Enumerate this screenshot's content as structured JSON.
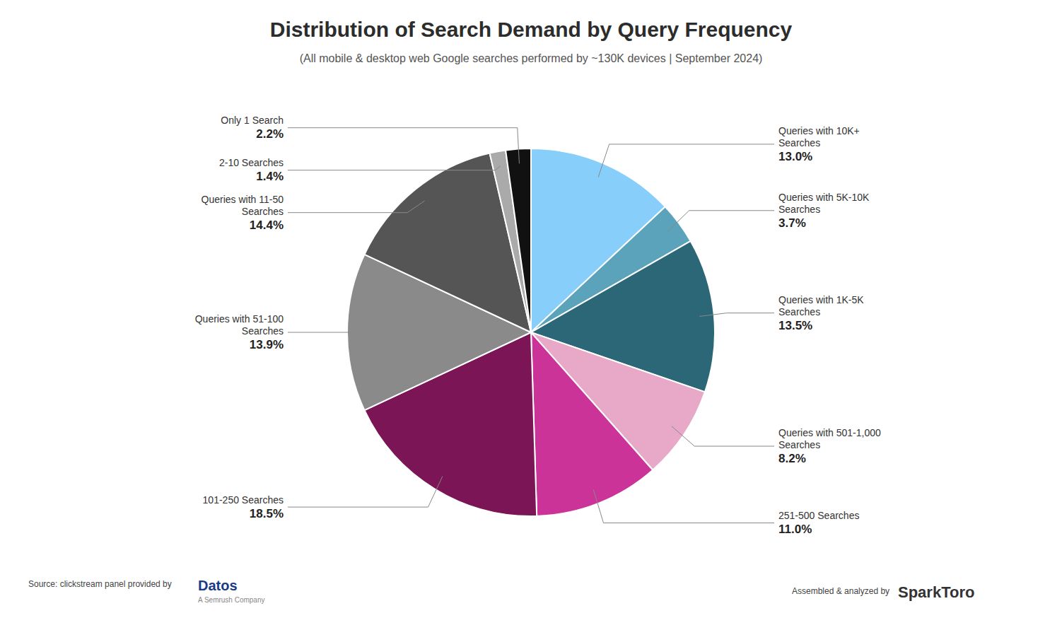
{
  "chart_data": {
    "type": "pie",
    "title": "Distribution of Search Demand by Query Frequency",
    "subtitle": "(All mobile & desktop web Google searches performed by ~130K devices | September 2024)",
    "categories": [
      "Queries with 10K+\nSearches",
      "Queries with 5K-10K\nSearches",
      "Queries with 1K-5K\nSearches",
      "Queries with 501-1,000\nSearches",
      "251-500 Searches",
      "101-250 Searches",
      "Queries with 51-100\nSearches",
      "Queries with 11-50\nSearches",
      "2-10 Searches",
      "Only 1 Search"
    ],
    "values": [
      13.0,
      3.7,
      13.5,
      8.2,
      11.0,
      18.5,
      13.9,
      14.4,
      1.4,
      2.2
    ],
    "value_labels": [
      "13.0%",
      "3.7%",
      "13.5%",
      "8.2%",
      "11.0%",
      "18.5%",
      "13.9%",
      "14.4%",
      "1.4%",
      "2.2%"
    ],
    "data_labels": true,
    "colors": [
      "#87CEFA",
      "#5BA3BA",
      "#2B6777",
      "#E8A8C8",
      "#CC3399",
      "#7B1555",
      "#8A8A8A",
      "#555555",
      "#AAAAAA",
      "#111111"
    ],
    "annotations": [
      "Source: clickstream panel provided by",
      "Datos",
      "A Semrush Company",
      "Assembled & analyzed by",
      "SparkToro"
    ]
  }
}
